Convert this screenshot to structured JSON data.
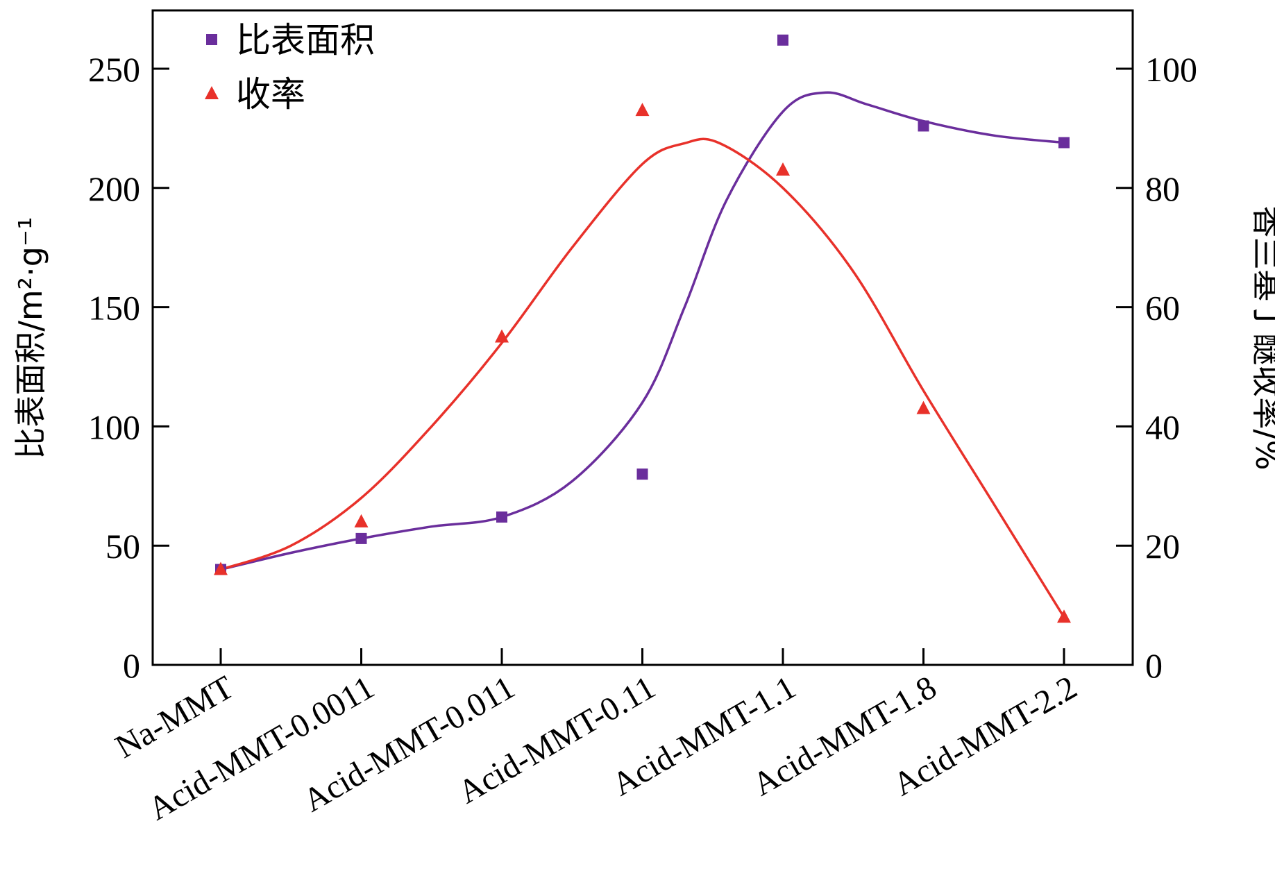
{
  "chart_data": {
    "type": "line",
    "categories": [
      "Na-MMT",
      "Acid-MMT-0.0011",
      "Acid-MMT-0.011",
      "Acid-MMT-0.11",
      "Acid-MMT-1.1",
      "Acid-MMT-1.8",
      "Acid-MMT-2.2"
    ],
    "title": "",
    "xlabel": "",
    "ylabel_left": "比表面积/m²·g⁻¹",
    "ylabel_right": "香兰基丁醚收率/%",
    "ylim_left": [
      0,
      250
    ],
    "yticks_left": [
      0,
      50,
      100,
      150,
      200,
      250
    ],
    "ylim_right": [
      0,
      100
    ],
    "yticks_right": [
      0,
      20,
      40,
      60,
      80,
      100
    ],
    "grid": false,
    "legend_position": "top-left",
    "series": [
      {
        "name": "比表面积",
        "axis": "left",
        "marker": "square",
        "color": "#6a2e9c",
        "values": [
          40,
          53,
          62,
          80,
          262,
          226,
          219
        ],
        "fit_curve": [
          [
            0,
            40
          ],
          [
            0.5,
            47
          ],
          [
            1,
            53
          ],
          [
            1.5,
            58
          ],
          [
            2,
            62
          ],
          [
            2.5,
            77
          ],
          [
            3,
            110
          ],
          [
            3.3,
            150
          ],
          [
            3.6,
            195
          ],
          [
            4,
            232
          ],
          [
            4.3,
            240
          ],
          [
            4.6,
            235
          ],
          [
            5,
            228
          ],
          [
            5.5,
            222
          ],
          [
            6,
            219
          ]
        ]
      },
      {
        "name": "收率",
        "axis": "right",
        "marker": "triangle",
        "color": "#e8312a",
        "values": [
          16,
          24,
          55,
          93,
          83,
          43,
          8
        ],
        "fit_curve": [
          [
            0,
            16
          ],
          [
            0.5,
            20
          ],
          [
            1,
            28
          ],
          [
            1.5,
            40
          ],
          [
            2,
            54
          ],
          [
            2.5,
            70
          ],
          [
            3,
            84
          ],
          [
            3.3,
            87.5
          ],
          [
            3.55,
            87.5
          ],
          [
            4,
            80
          ],
          [
            4.5,
            66
          ],
          [
            5,
            46
          ],
          [
            5.5,
            27
          ],
          [
            6,
            8
          ]
        ]
      }
    ]
  }
}
